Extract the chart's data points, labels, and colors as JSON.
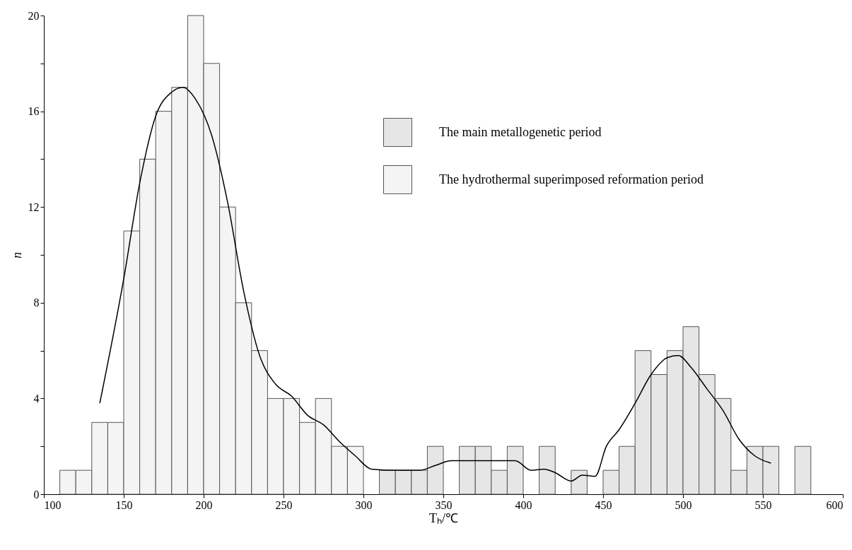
{
  "chart_data": {
    "type": "histogram",
    "xlabel": "Tₕ/℃",
    "ylabel": "n",
    "bins": [
      110,
      120,
      130,
      140,
      150,
      160,
      170,
      180,
      190,
      200,
      210,
      220,
      230,
      240,
      250,
      260,
      270,
      280,
      290,
      300,
      310,
      320,
      330,
      340,
      350,
      360,
      370,
      380,
      390,
      400,
      410,
      420,
      430,
      440,
      450,
      460,
      470,
      480,
      490,
      500,
      510,
      520,
      530,
      540,
      550,
      560,
      570,
      580
    ],
    "series": [
      {
        "name": "The main metallogenetic period",
        "color": "#e6e6e6",
        "values": [
          null,
          null,
          null,
          null,
          null,
          null,
          null,
          null,
          null,
          null,
          null,
          null,
          null,
          null,
          null,
          null,
          null,
          null,
          null,
          null,
          1,
          1,
          1,
          2,
          null,
          2,
          2,
          1,
          2,
          null,
          2,
          null,
          1,
          null,
          1,
          2,
          6,
          5,
          6,
          7,
          5,
          4,
          1,
          2,
          2,
          null,
          2
        ]
      },
      {
        "name": "The hydrothermal superimposed reformation period",
        "color": "#f4f4f4",
        "values": [
          1,
          1,
          3,
          3,
          11,
          14,
          16,
          17,
          20,
          18,
          12,
          8,
          6,
          4,
          4,
          3,
          4,
          2,
          2,
          null,
          null,
          null,
          null,
          null,
          null,
          null,
          null,
          null,
          null,
          null,
          null,
          null,
          null,
          null,
          null,
          null,
          null,
          null,
          null,
          null,
          null,
          null,
          null,
          null,
          null,
          null,
          null
        ]
      },
      {
        "type": "line",
        "color": "#000000",
        "x": [
          135,
          150,
          160,
          170,
          180,
          187,
          195,
          205,
          215,
          225,
          235,
          245,
          255,
          265,
          275,
          285,
          295,
          305,
          320,
          335,
          345,
          355,
          370,
          385,
          395,
          405,
          413,
          420,
          430,
          437,
          445,
          452,
          460,
          470,
          480,
          490,
          497,
          505,
          515,
          525,
          535,
          545,
          555
        ],
        "values": [
          3.8,
          9,
          13,
          15.8,
          16.8,
          17,
          16.5,
          15,
          12.2,
          8.5,
          5.8,
          4.6,
          4.1,
          3.3,
          2.9,
          2.2,
          1.6,
          1.05,
          1,
          1,
          1.2,
          1.4,
          1.4,
          1.4,
          1.4,
          1,
          1.05,
          0.9,
          0.55,
          0.8,
          0.75,
          2,
          2.7,
          3.8,
          5,
          5.7,
          5.8,
          5.3,
          4.4,
          3.5,
          2.3,
          1.6,
          1.3
        ]
      }
    ],
    "xlim": [
      100,
      600
    ],
    "xticks": [
      100,
      150,
      200,
      250,
      300,
      350,
      400,
      450,
      500,
      550,
      600
    ],
    "ylim": [
      0,
      20
    ],
    "yticks": [
      0,
      {
        "value": 2,
        "label": null
      },
      4,
      {
        "value": 6,
        "label": null
      },
      8,
      {
        "value": 10,
        "label": null
      },
      12,
      {
        "value": 14,
        "label": null
      },
      16,
      {
        "value": 18,
        "label": null
      },
      20
    ],
    "grid": false,
    "legend": "top right"
  }
}
